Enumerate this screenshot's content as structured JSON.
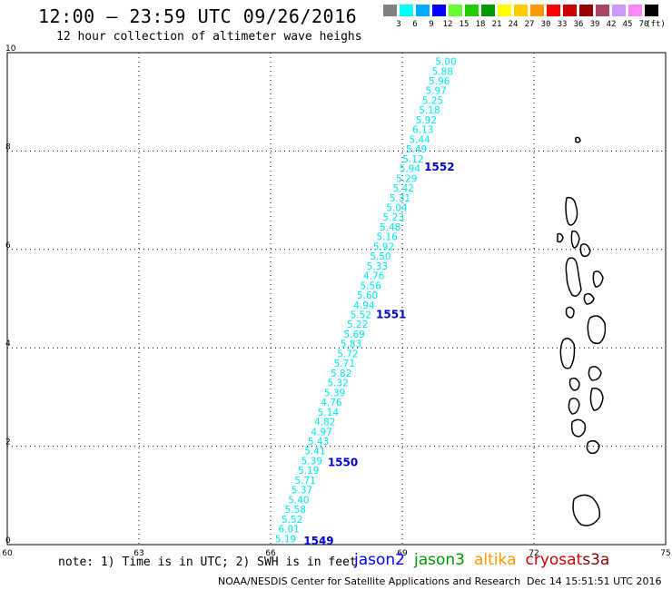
{
  "header": {
    "title": "12:00 – 23:59 UTC 09/26/2016",
    "subtitle": "12 hour collection of altimeter wave heighs"
  },
  "legend": {
    "unit": "(ft)",
    "bins": [
      {
        "label": "3",
        "color": "#808080"
      },
      {
        "label": "6",
        "color": "#00ffff"
      },
      {
        "label": "9",
        "color": "#00aaff"
      },
      {
        "label": "12",
        "color": "#0000ff"
      },
      {
        "label": "15",
        "color": "#66ff33"
      },
      {
        "label": "18",
        "color": "#22cc00"
      },
      {
        "label": "21",
        "color": "#009900"
      },
      {
        "label": "24",
        "color": "#ffff00"
      },
      {
        "label": "27",
        "color": "#ffcc00"
      },
      {
        "label": "30",
        "color": "#ff9900"
      },
      {
        "label": "33",
        "color": "#ff0000"
      },
      {
        "label": "36",
        "color": "#cc0000"
      },
      {
        "label": "39",
        "color": "#990000"
      },
      {
        "label": "42",
        "color": "#aa4466"
      },
      {
        "label": "45",
        "color": "#cc99ff"
      },
      {
        "label": "70",
        "color": "#ff88ff"
      },
      {
        "label": "",
        "color": "#000000"
      }
    ]
  },
  "map": {
    "lon_range": [
      60,
      75
    ],
    "lat_range": [
      0,
      10
    ],
    "x_ticks": [
      "60",
      "63",
      "66",
      "69",
      "72",
      "75"
    ],
    "y_ticks": [
      "0",
      "2",
      "4",
      "6",
      "8",
      "10"
    ],
    "grid": "dotted",
    "track_color": "#00e5ee",
    "time_color": "#0000cc",
    "swh_values": [
      "5.19",
      "6.01",
      "5.52",
      "5.58",
      "5.40",
      "5.37",
      "5.71",
      "5.19",
      "5.39",
      "5.41",
      "5.43",
      "4.97",
      "4.82",
      "5.14",
      "4.76",
      "5.39",
      "5.32",
      "5.82",
      "5.71",
      "5.72",
      "5.83",
      "5.69",
      "5.22",
      "5.52",
      "4.94",
      "5.60",
      "5.56",
      "4.76",
      "5.33",
      "5.50",
      "5.92",
      "5.16",
      "5.48",
      "5.23",
      "5.04",
      "5.31",
      "5.42",
      "5.29",
      "5.94",
      "5.12",
      "5.49",
      "5.44",
      "6.13",
      "5.92",
      "5.18",
      "5.25",
      "5.97",
      "5.96",
      "5.88",
      "5.00"
    ],
    "time_labels": [
      {
        "text": "1549",
        "lon": 66.75,
        "lat": 0.0
      },
      {
        "text": "1550",
        "lon": 67.3,
        "lat": 1.6
      },
      {
        "text": "1551",
        "lon": 68.4,
        "lat": 4.6
      },
      {
        "text": "1552",
        "lon": 69.5,
        "lat": 7.6
      }
    ]
  },
  "note": "note: 1) Time is in UTC; 2) SWH is in feet",
  "satellites": [
    {
      "name": "jason2",
      "color": "#0000ff"
    },
    {
      "name": "jason3",
      "color": "#009900"
    },
    {
      "name": "altika",
      "color": "#ff9900"
    },
    {
      "name": "cryosat",
      "color": "#cc0000"
    },
    {
      "name": "s3a",
      "color": "#880000"
    }
  ],
  "footer": {
    "credit": "NOAA/NESDIS Center for Satellite Applications and Research",
    "timestamp": "Dec 14 15:51:51 UTC 2016"
  }
}
